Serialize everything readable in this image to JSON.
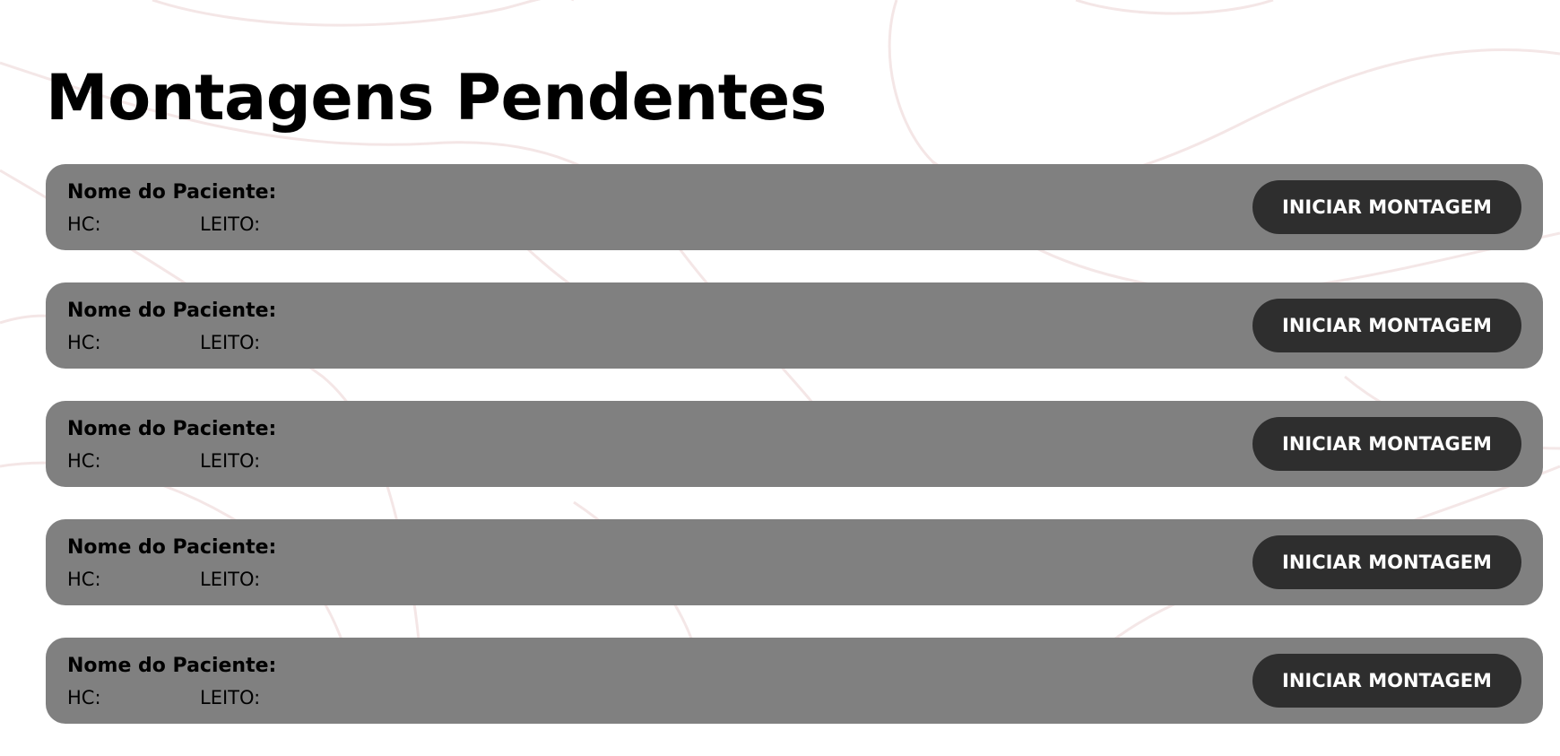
{
  "page": {
    "title": "Montagens Pendentes"
  },
  "colors": {
    "background": "#ffffff",
    "card_background": "#808080",
    "button_background": "#2e2e2e",
    "button_text": "#ffffff",
    "pattern_stroke": "#f3e4e4"
  },
  "cards": [
    {
      "name_label": "Nome do Paciente:",
      "hc_label": "HC:",
      "leito_label": "LEITO:",
      "button_label": "INICIAR MONTAGEM"
    },
    {
      "name_label": "Nome do Paciente:",
      "hc_label": "HC:",
      "leito_label": "LEITO:",
      "button_label": "INICIAR MONTAGEM"
    },
    {
      "name_label": "Nome do Paciente:",
      "hc_label": "HC:",
      "leito_label": "LEITO:",
      "button_label": "INICIAR MONTAGEM"
    },
    {
      "name_label": "Nome do Paciente:",
      "hc_label": "HC:",
      "leito_label": "LEITO:",
      "button_label": "INICIAR MONTAGEM"
    },
    {
      "name_label": "Nome do Paciente:",
      "hc_label": "HC:",
      "leito_label": "LEITO:",
      "button_label": "INICIAR MONTAGEM"
    }
  ]
}
